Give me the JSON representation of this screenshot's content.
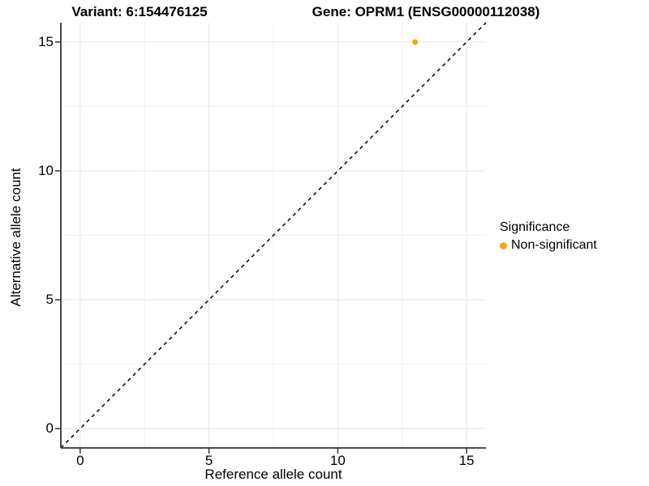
{
  "titles": {
    "left": "Variant: 6:154476125",
    "right": "Gene: OPRM1 (ENSG00000112038)"
  },
  "legend": {
    "title": "Significance",
    "items": [
      {
        "label": "Non-significant",
        "color": "#F9A21B",
        "marker": "circle"
      }
    ]
  },
  "colors": {
    "point": "#F9A21B",
    "grid_major": "#E5E5E5",
    "grid_minor": "#F0F0F0",
    "axis_line": "#333333",
    "tick_mark": "#333333",
    "identity_line": "#000000",
    "text": "#000000"
  },
  "chart_data": {
    "type": "scatter",
    "title": "Variant: 6:154476125   Gene: OPRM1 (ENSG00000112038)",
    "xlabel": "Reference allele count",
    "ylabel": "Alternative allele count",
    "xlim": [
      -0.75,
      15.75
    ],
    "ylim": [
      -0.75,
      15.75
    ],
    "xticks": [
      0,
      5,
      10,
      15
    ],
    "yticks": [
      0,
      5,
      10,
      15
    ],
    "xminor": [
      2.5,
      7.5,
      12.5
    ],
    "yminor": [
      2.5,
      7.5,
      12.5
    ],
    "grid": true,
    "legend_position": "right",
    "identity_line": {
      "slope": 1,
      "intercept": 0,
      "style": "dashed"
    },
    "series": [
      {
        "name": "Non-significant",
        "color": "#F9A21B",
        "points": [
          {
            "x": 13,
            "y": 15
          }
        ]
      }
    ]
  }
}
